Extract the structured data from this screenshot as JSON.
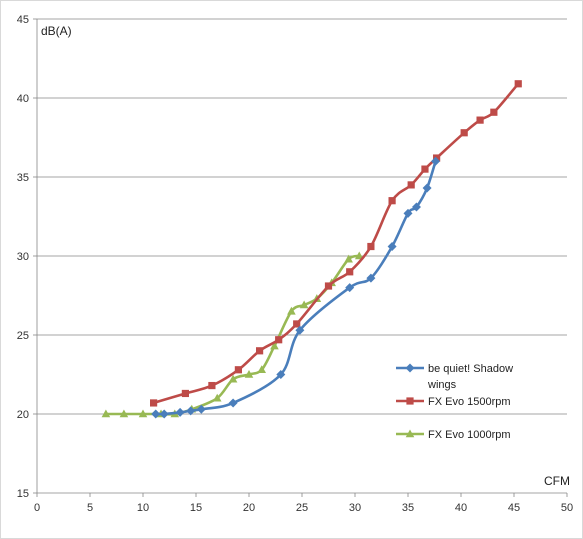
{
  "chart_data": {
    "type": "line",
    "xlabel": "CFM",
    "ylabel": "dB(A)",
    "xlim": [
      0,
      50
    ],
    "ylim": [
      15,
      45
    ],
    "x_ticks": [
      0,
      5,
      10,
      15,
      20,
      25,
      30,
      35,
      40,
      45,
      50
    ],
    "y_ticks": [
      15,
      20,
      25,
      30,
      35,
      40,
      45
    ],
    "grid": "horizontal",
    "legend_position": "right",
    "series": [
      {
        "name": "be quiet! Shadow wings",
        "legend_lines": [
          "be quiet! Shadow",
          "wings"
        ],
        "color": "#4a7ebb",
        "marker": "diamond",
        "points": [
          [
            11.2,
            20.0
          ],
          [
            12.0,
            20.0
          ],
          [
            13.5,
            20.1
          ],
          [
            14.5,
            20.2
          ],
          [
            15.5,
            20.3
          ],
          [
            18.5,
            20.7
          ],
          [
            23.0,
            22.5
          ],
          [
            24.8,
            25.3
          ],
          [
            29.5,
            28.0
          ],
          [
            31.5,
            28.6
          ],
          [
            33.5,
            30.6
          ],
          [
            35.0,
            32.7
          ],
          [
            35.8,
            33.1
          ],
          [
            36.8,
            34.3
          ],
          [
            37.6,
            36.0
          ]
        ]
      },
      {
        "name": "FX Evo 1500rpm",
        "legend_lines": [
          "FX Evo 1500rpm"
        ],
        "color": "#be4b48",
        "marker": "square",
        "points": [
          [
            11.0,
            20.7
          ],
          [
            14.0,
            21.3
          ],
          [
            16.5,
            21.8
          ],
          [
            19.0,
            22.8
          ],
          [
            21.0,
            24.0
          ],
          [
            22.8,
            24.7
          ],
          [
            24.5,
            25.7
          ],
          [
            27.5,
            28.1
          ],
          [
            29.5,
            29.0
          ],
          [
            31.5,
            30.6
          ],
          [
            33.5,
            33.5
          ],
          [
            35.3,
            34.5
          ],
          [
            36.6,
            35.5
          ],
          [
            37.7,
            36.2
          ],
          [
            40.3,
            37.8
          ],
          [
            41.8,
            38.6
          ],
          [
            43.1,
            39.1
          ],
          [
            45.4,
            40.9
          ]
        ]
      },
      {
        "name": "FX Evo 1000rpm",
        "legend_lines": [
          "FX Evo 1000rpm"
        ],
        "color": "#98b954",
        "marker": "triangle",
        "points": [
          [
            6.5,
            20.0
          ],
          [
            8.2,
            20.0
          ],
          [
            10.0,
            20.0
          ],
          [
            11.7,
            20.0
          ],
          [
            13.0,
            20.0
          ],
          [
            14.6,
            20.3
          ],
          [
            17.0,
            21.0
          ],
          [
            18.5,
            22.2
          ],
          [
            20.0,
            22.5
          ],
          [
            21.2,
            22.8
          ],
          [
            22.4,
            24.3
          ],
          [
            24.0,
            26.5
          ],
          [
            25.2,
            26.9
          ],
          [
            26.4,
            27.3
          ],
          [
            27.8,
            28.3
          ],
          [
            29.4,
            29.8
          ],
          [
            30.4,
            30.0
          ]
        ]
      }
    ]
  }
}
